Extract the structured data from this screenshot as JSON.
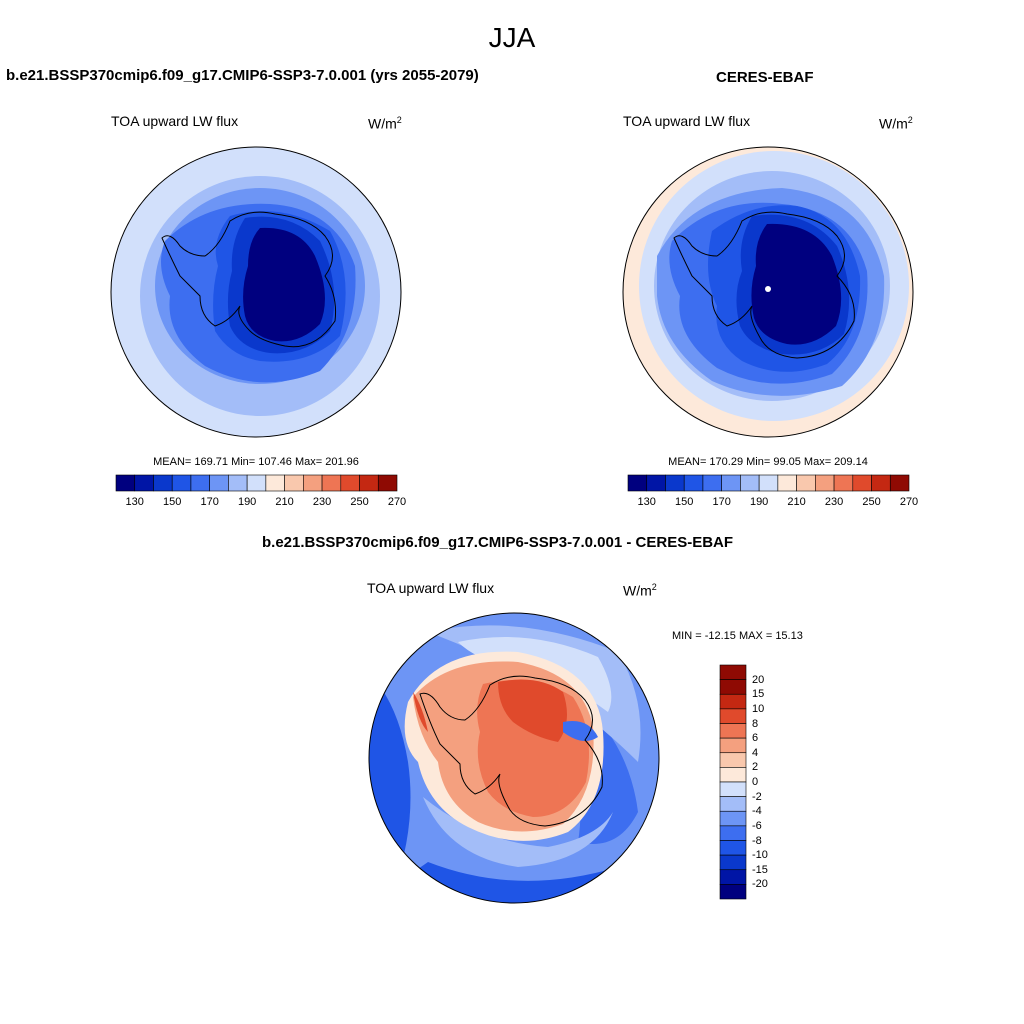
{
  "figure": {
    "title": "JJA"
  },
  "panels": {
    "model": {
      "title": "b.e21.BSSP370cmip6.f09_g17.CMIP6-SSP3-7.0.001 (yrs 2055-2079)",
      "variable": "TOA upward LW flux",
      "units_base": "W/m",
      "units_exp": "2",
      "stats": "MEAN= 169.71  Min= 107.46  Max= 201.96"
    },
    "obs": {
      "title": "CERES-EBAF",
      "variable": "TOA upward LW flux",
      "units_base": "W/m",
      "units_exp": "2",
      "stats": "MEAN= 170.29  Min=  99.05  Max= 209.14"
    },
    "diff": {
      "title": "b.e21.BSSP370cmip6.f09_g17.CMIP6-SSP3-7.0.001 - CERES-EBAF",
      "variable": "TOA upward LW flux",
      "units_base": "W/m",
      "units_exp": "2",
      "stats": "MIN = -12.15 MAX =  15.13"
    }
  },
  "colorbars": {
    "abs": {
      "colors": [
        "#00007f",
        "#0015a6",
        "#0a38cc",
        "#1f55e6",
        "#3d6ef0",
        "#6d95f5",
        "#a3bdf8",
        "#d2e0fb",
        "#fde9da",
        "#f9c8ad",
        "#f4a07f",
        "#ee7554",
        "#e04a2c",
        "#c42812",
        "#8f0a03"
      ],
      "tick_labels": [
        "130",
        "150",
        "170",
        "190",
        "210",
        "230",
        "250",
        "270"
      ]
    },
    "diff": {
      "colors": [
        "#00007f",
        "#0015a6",
        "#0a38cc",
        "#1f55e6",
        "#3d6ef0",
        "#6d95f5",
        "#a3bdf8",
        "#d2e0fb",
        "#fde9da",
        "#f9c8ad",
        "#f4a07f",
        "#ee7554",
        "#e04a2c",
        "#c42812",
        "#8f0a03"
      ],
      "tick_labels": [
        "20",
        "15",
        "10",
        "8",
        "6",
        "4",
        "2",
        "0",
        "-2",
        "-4",
        "-6",
        "-8",
        "-10",
        "-15",
        "-20"
      ]
    }
  },
  "map_colors": {
    "outer_light": "#d2e0fb",
    "pale_blue": "#a3bdf8",
    "mid_blue": "#6d95f5",
    "blue": "#3d6ef0",
    "deep_blue": "#1f55e6",
    "darker_blue": "#0a38cc",
    "navy": "#00007f",
    "peach": "#fde9da",
    "salmon": "#f4a07f",
    "orange": "#ee7554",
    "red": "#e04a2c"
  }
}
